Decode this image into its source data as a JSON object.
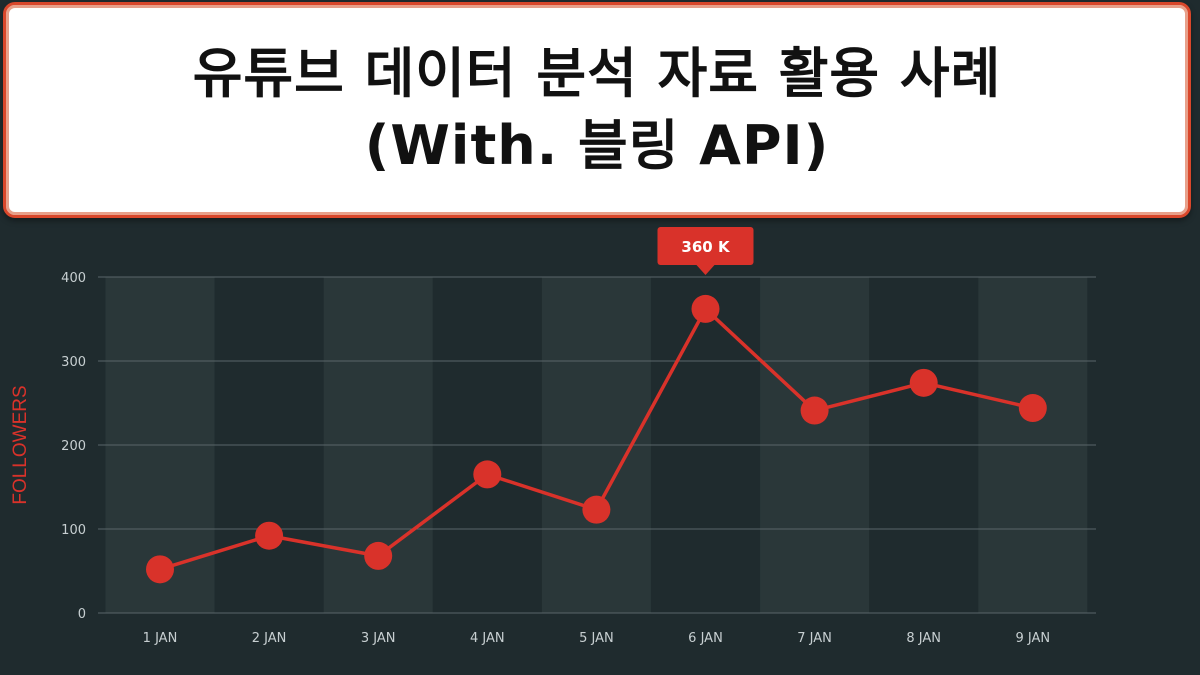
{
  "title": {
    "line1": "유튜브 데이터 분석 자료 활용 사례",
    "line2": "(With. 블링 API)"
  },
  "chart_data": {
    "type": "line",
    "ylabel": "FOLLOWERS",
    "ylim": [
      0,
      400
    ],
    "yticks": [
      0,
      100,
      200,
      300,
      400
    ],
    "categories": [
      "1 JAN",
      "2 JAN",
      "3 JAN",
      "4 JAN",
      "5 JAN",
      "6 JAN",
      "7 JAN",
      "8 JAN",
      "9 JAN"
    ],
    "series": [
      {
        "values": [
          52,
          92,
          68,
          165,
          123,
          362,
          241,
          274,
          244
        ]
      }
    ],
    "callout": {
      "category": "6 JAN",
      "label": "360 K"
    },
    "colors": {
      "line": "#d9322a",
      "callout": "#d9322a",
      "grid": "#5a6669"
    }
  }
}
